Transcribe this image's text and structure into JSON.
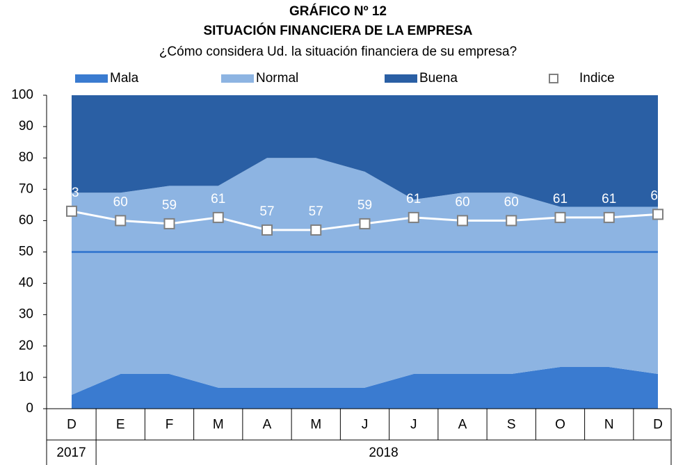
{
  "chart_data": {
    "type": "stacked-area-line",
    "title": "GRÁFICO Nº 12",
    "subtitle": "SITUACIÓN FINANCIERA DE LA EMPRESA",
    "question": "¿Cómo considera Ud. la situación financiera de su empresa?",
    "categories": [
      "D",
      "E",
      "F",
      "M",
      "A",
      "M",
      "J",
      "J",
      "A",
      "S",
      "O",
      "N",
      "D"
    ],
    "x_groups": [
      {
        "label": "2017",
        "span": 1
      },
      {
        "label": "2018",
        "span": 12
      }
    ],
    "series": [
      {
        "name": "Mala",
        "color": "#3a7bd0",
        "values": [
          4.4,
          11.1,
          11.1,
          6.7,
          6.7,
          6.7,
          6.7,
          11.1,
          11.1,
          11.1,
          13.3,
          13.3,
          11.1
        ]
      },
      {
        "name": "Normal",
        "color": "#8db4e2",
        "values": [
          64.5,
          57.8,
          60,
          64.4,
          73.3,
          73.3,
          68.9,
          55.6,
          57.8,
          57.8,
          51.1,
          51.1,
          53.3
        ]
      },
      {
        "name": "Buena",
        "color": "#2a5fa4",
        "values": [
          31.1,
          31.1,
          28.9,
          28.9,
          20,
          20,
          24.4,
          33.3,
          31.1,
          31.1,
          35.6,
          35.6,
          35.6
        ]
      }
    ],
    "line": {
      "name": "Indice",
      "color": "#ffffff",
      "values": [
        63,
        60,
        59,
        61,
        57,
        57,
        59,
        61,
        60,
        60,
        61,
        61,
        62
      ]
    },
    "reference_line": {
      "value": 50,
      "color": "#3a7bd0"
    },
    "ylim": [
      0,
      100
    ],
    "yticks": [
      0,
      10,
      20,
      30,
      40,
      50,
      60,
      70,
      80,
      90,
      100
    ]
  }
}
